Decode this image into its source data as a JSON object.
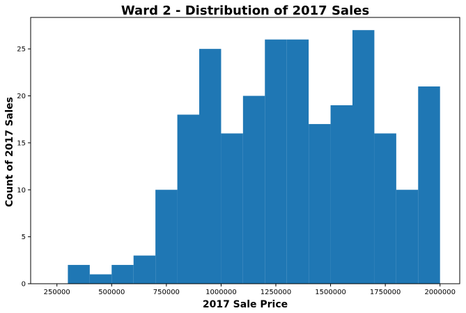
{
  "chart_data": {
    "type": "bar",
    "title": "Ward 2 - Distribution of 2017 Sales",
    "xlabel": "2017 Sale Price",
    "ylabel": "Count of 2017 Sales",
    "xlim": [
      130000,
      2090000
    ],
    "ylim": [
      0,
      28.35
    ],
    "grid": false,
    "legend": "none",
    "bar_color": "#1f77b4",
    "x_ticks": [
      250000,
      500000,
      750000,
      1000000,
      1250000,
      1500000,
      1750000,
      2000000
    ],
    "x_tick_labels": [
      "250000",
      "500000",
      "750000",
      "1000000",
      "1250000",
      "1500000",
      "1750000",
      "2000000"
    ],
    "y_ticks": [
      0,
      5,
      10,
      15,
      20,
      25
    ],
    "y_tick_labels": [
      "0",
      "5",
      "10",
      "15",
      "20",
      "25"
    ],
    "bins": [
      {
        "start": 300000,
        "end": 400000,
        "count": 2
      },
      {
        "start": 400000,
        "end": 500000,
        "count": 1
      },
      {
        "start": 500000,
        "end": 600000,
        "count": 2
      },
      {
        "start": 600000,
        "end": 700000,
        "count": 3
      },
      {
        "start": 700000,
        "end": 800000,
        "count": 10
      },
      {
        "start": 800000,
        "end": 900000,
        "count": 18
      },
      {
        "start": 900000,
        "end": 1000000,
        "count": 25
      },
      {
        "start": 1000000,
        "end": 1100000,
        "count": 16
      },
      {
        "start": 1100000,
        "end": 1200000,
        "count": 20
      },
      {
        "start": 1200000,
        "end": 1300000,
        "count": 26
      },
      {
        "start": 1300000,
        "end": 1400000,
        "count": 26
      },
      {
        "start": 1400000,
        "end": 1500000,
        "count": 17
      },
      {
        "start": 1500000,
        "end": 1600000,
        "count": 19
      },
      {
        "start": 1600000,
        "end": 1700000,
        "count": 27
      },
      {
        "start": 1700000,
        "end": 1800000,
        "count": 16
      },
      {
        "start": 1800000,
        "end": 1900000,
        "count": 10
      },
      {
        "start": 1900000,
        "end": 2000000,
        "count": 21
      }
    ]
  }
}
